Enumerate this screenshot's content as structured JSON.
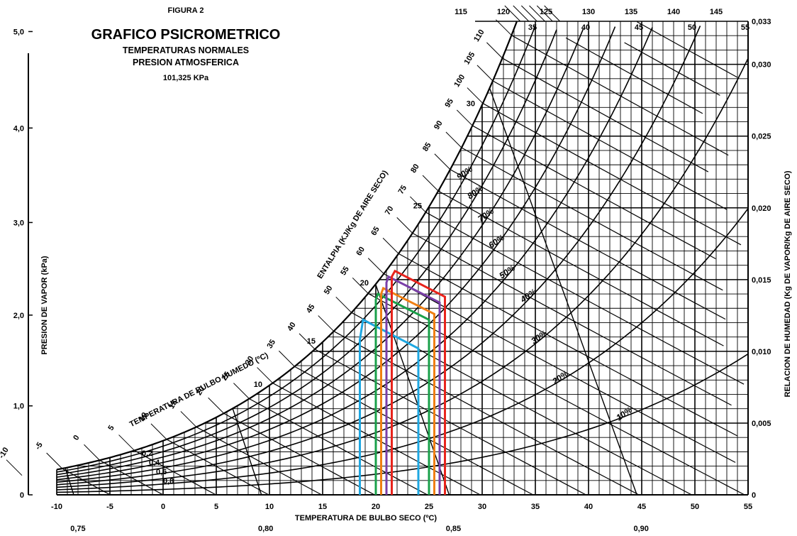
{
  "chart_data": {
    "type": "line",
    "chart_kind": "psychrometric chart",
    "figure_label": "FIGURA 2",
    "title": "GRAFICO PSICROMETRICO",
    "subtitle_lines": [
      "TEMPERATURAS NORMALES",
      "PRESION ATMOSFERICA",
      "101,325 KPa"
    ],
    "xlabel": "TEMPERATURA DE BULBO SECO (ºC)",
    "ylabel_left": "PRESION DE VAPOR (kPa)",
    "ylabel_right": "RELACION DE HUMEDAD (Kg DE VAPOR/Kg DE AIRE SECO)",
    "enthalpy_label": "ENTALPIA (KJ/Kg DE AIRE SECO)",
    "wetbulb_label": "TEMPERATURA DE BULBO HUMEDO (ºC)",
    "x_ticks": [
      "-10",
      "-5",
      "0",
      "5",
      "10",
      "15",
      "20",
      "25",
      "30",
      "35",
      "40",
      "45",
      "50",
      "55"
    ],
    "xlim": [
      -10,
      55
    ],
    "y_left_ticks": [
      "0",
      "1,0",
      "2,0",
      "3,0",
      "4,0",
      "5,0"
    ],
    "y_right_ticks": [
      "0",
      "0,005",
      "0,010",
      "0,015",
      "0,020",
      "0,025",
      "0,030",
      "0,033"
    ],
    "ylim_right": [
      0,
      0.033
    ],
    "specific_volume_labels": [
      "0,75",
      "0,80",
      "0,85",
      "0,90"
    ],
    "enthalpy_ticks": [
      "-10",
      "-5",
      "0",
      "5",
      "10",
      "15",
      "20",
      "25",
      "30",
      "35",
      "40",
      "45",
      "50",
      "55",
      "60",
      "65",
      "70",
      "75",
      "80",
      "85",
      "90",
      "95",
      "100",
      "105",
      "110",
      "115",
      "120",
      "125",
      "130",
      "135",
      "140",
      "145"
    ],
    "wetbulb_ticks": [
      "10",
      "15",
      "20",
      "25",
      "30"
    ],
    "top_scale_ticks": [
      "35",
      "40",
      "45",
      "50",
      "55"
    ],
    "rh_labels": [
      "10%",
      "20%",
      "30%",
      "40%",
      "50%",
      "60%",
      "70%",
      "80%",
      "90%"
    ],
    "sensible_heat_factor_labels": [
      "0,2",
      "0,4",
      "0,6",
      "0,8"
    ],
    "grid": true,
    "comfort_zones": [
      {
        "color": "#1ea7e1",
        "points": [
          [
            18.5,
            0
          ],
          [
            18.5,
            0.0108
          ],
          [
            18.8,
            0.0122
          ],
          [
            24.0,
            0.0102
          ],
          [
            24.0,
            0
          ]
        ]
      },
      {
        "color": "#1aa04a",
        "points": [
          [
            20.0,
            0
          ],
          [
            20.0,
            0.0136
          ],
          [
            20.2,
            0.014
          ],
          [
            25.0,
            0.0122
          ],
          [
            25.0,
            0
          ]
        ]
      },
      {
        "color": "#f07f13",
        "points": [
          [
            20.5,
            0
          ],
          [
            20.5,
            0.014
          ],
          [
            20.7,
            0.0144
          ],
          [
            25.5,
            0.0126
          ],
          [
            25.5,
            0
          ]
        ]
      },
      {
        "color": "#7a3fa8",
        "points": [
          [
            21.0,
            0
          ],
          [
            21.0,
            0.0148
          ],
          [
            21.2,
            0.0152
          ],
          [
            26.0,
            0.0134
          ],
          [
            26.0,
            0
          ]
        ]
      },
      {
        "color": "#e8231c",
        "points": [
          [
            21.5,
            0
          ],
          [
            21.5,
            0.0152
          ],
          [
            21.8,
            0.0156
          ],
          [
            26.5,
            0.0138
          ],
          [
            26.5,
            0
          ]
        ]
      }
    ]
  }
}
